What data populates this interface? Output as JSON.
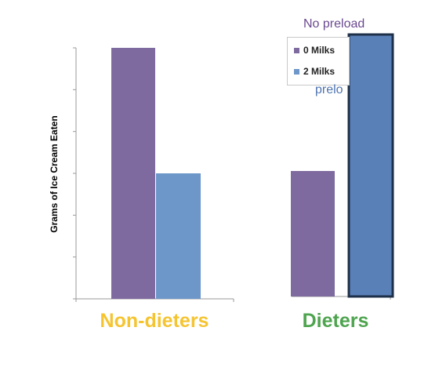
{
  "chart_data": {
    "type": "bar",
    "categories": [
      "Non-dieters",
      "Dieters"
    ],
    "category_colors": [
      "#f5c431",
      "#4ea44f"
    ],
    "ylabel": "Grams of Ice Cream Eaten",
    "ylim": [
      0,
      6
    ],
    "series": [
      {
        "name": "0 Milks",
        "color": "#7e6a9f",
        "values": [
          6.0,
          3.0
        ]
      },
      {
        "name": "2 Milks",
        "color": "#6d96c9",
        "values": [
          3.0,
          6.3
        ]
      }
    ],
    "annotations": [
      "No preload",
      "prelo"
    ]
  }
}
